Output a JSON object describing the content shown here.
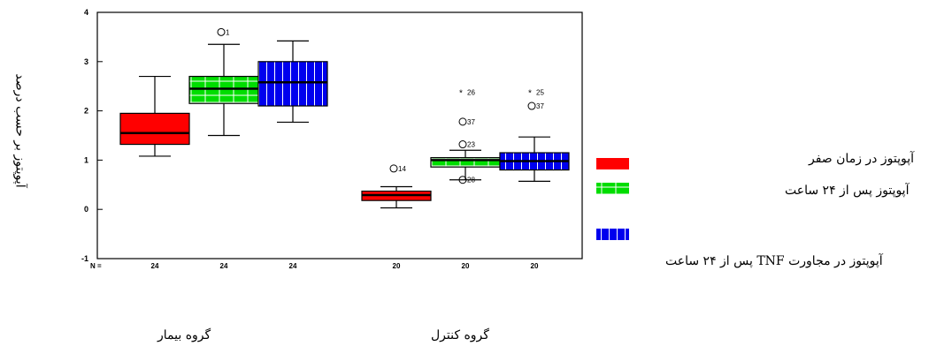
{
  "chart_data": {
    "type": "box",
    "ylabel": "آپوپتوز بر حسب درصد",
    "ylim": [
      -1,
      4
    ],
    "yticks": [
      -1,
      0,
      1,
      2,
      3,
      4
    ],
    "n_prefix": "N =",
    "groups": [
      {
        "label": "گروه بیمار",
        "boxes": [
          {
            "series": 0,
            "n": "24",
            "whisker_low": 1.08,
            "q1": 1.32,
            "median": 1.55,
            "q3": 1.95,
            "whisker_high": 2.7,
            "outliers": []
          },
          {
            "series": 1,
            "n": "24",
            "whisker_low": 1.5,
            "q1": 2.15,
            "median": 2.45,
            "q3": 2.7,
            "whisker_high": 3.35,
            "outliers": [
              {
                "value": 3.6,
                "label": "1"
              }
            ]
          },
          {
            "series": 2,
            "n": "24",
            "whisker_low": 1.77,
            "q1": 2.1,
            "median": 2.58,
            "q3": 3.0,
            "whisker_high": 3.42,
            "outliers": []
          }
        ]
      },
      {
        "label": "گروه کنترل",
        "boxes": [
          {
            "series": 0,
            "n": "20",
            "whisker_low": 0.03,
            "q1": 0.18,
            "median": 0.29,
            "q3": 0.37,
            "whisker_high": 0.46,
            "outliers": [
              {
                "value": 0.83,
                "label": "14"
              }
            ]
          },
          {
            "series": 1,
            "n": "20",
            "whisker_low": 0.6,
            "q1": 0.86,
            "median": 1.0,
            "q3": 1.05,
            "whisker_high": 1.2,
            "outliers": [
              {
                "value": 0.6,
                "label": "28"
              },
              {
                "value": 1.32,
                "label": "23"
              },
              {
                "value": 1.78,
                "label": "37"
              },
              {
                "value": 2.38,
                "label": "26",
                "star": true
              }
            ]
          },
          {
            "series": 2,
            "n": "20",
            "whisker_low": 0.57,
            "q1": 0.8,
            "median": 0.98,
            "q3": 1.15,
            "whisker_high": 1.47,
            "outliers": [
              {
                "value": 2.1,
                "label": "37"
              },
              {
                "value": 2.38,
                "label": "25",
                "star": true
              }
            ]
          }
        ]
      }
    ],
    "series": [
      {
        "name": "آپوپتوز در زمان صفر",
        "color": "#ff0000",
        "pattern": "solid"
      },
      {
        "name": "آپوپتوز پس از ۲۴ ساعت",
        "color": "#00dd00",
        "pattern": "grid"
      },
      {
        "name": "آپوپتوز در مجاورت TNF پس از ۲۴ ساعت",
        "color": "#0000ee",
        "pattern": "stripes"
      }
    ],
    "legend_position": "right"
  }
}
